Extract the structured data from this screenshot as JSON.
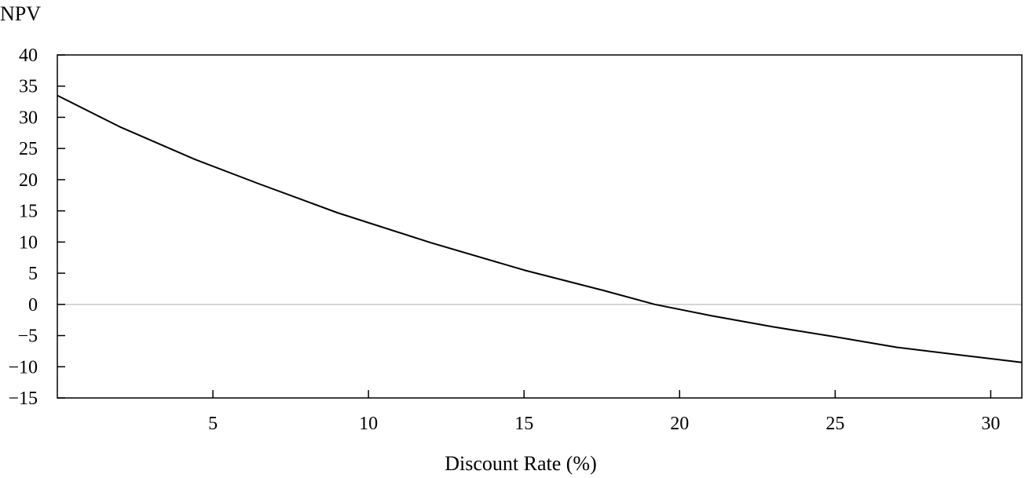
{
  "chart_data": {
    "type": "line",
    "title": "",
    "xlabel": "Discount Rate (%)",
    "ylabel": "NPV",
    "xlim": [
      0,
      31
    ],
    "ylim": [
      -15,
      40
    ],
    "xticks": [
      5,
      10,
      15,
      20,
      25,
      30
    ],
    "xtick_labels": [
      "5",
      "10",
      "15",
      "20",
      "25",
      "30"
    ],
    "yticks": [
      40,
      35,
      30,
      25,
      20,
      15,
      10,
      5,
      0,
      -5,
      -10,
      -15
    ],
    "ytick_labels": [
      "40",
      "35",
      "30",
      "25",
      "20",
      "15",
      "10",
      "5",
      "0",
      "−5",
      "−10",
      "−15"
    ],
    "reference_line": {
      "y": 0,
      "color": "#c8c8c8"
    },
    "grid": false,
    "series": [
      {
        "color": "#000000",
        "x": [
          0,
          2,
          4.4,
          6.5,
          9,
          12,
          15,
          17.5,
          19.2,
          21,
          23,
          25,
          27,
          29,
          31
        ],
        "y": [
          33.5,
          28.5,
          23.3,
          19.3,
          14.7,
          9.9,
          5.5,
          2.3,
          0,
          -1.8,
          -3.6,
          -5.2,
          -6.9,
          -8.1,
          -9.3
        ]
      }
    ]
  }
}
